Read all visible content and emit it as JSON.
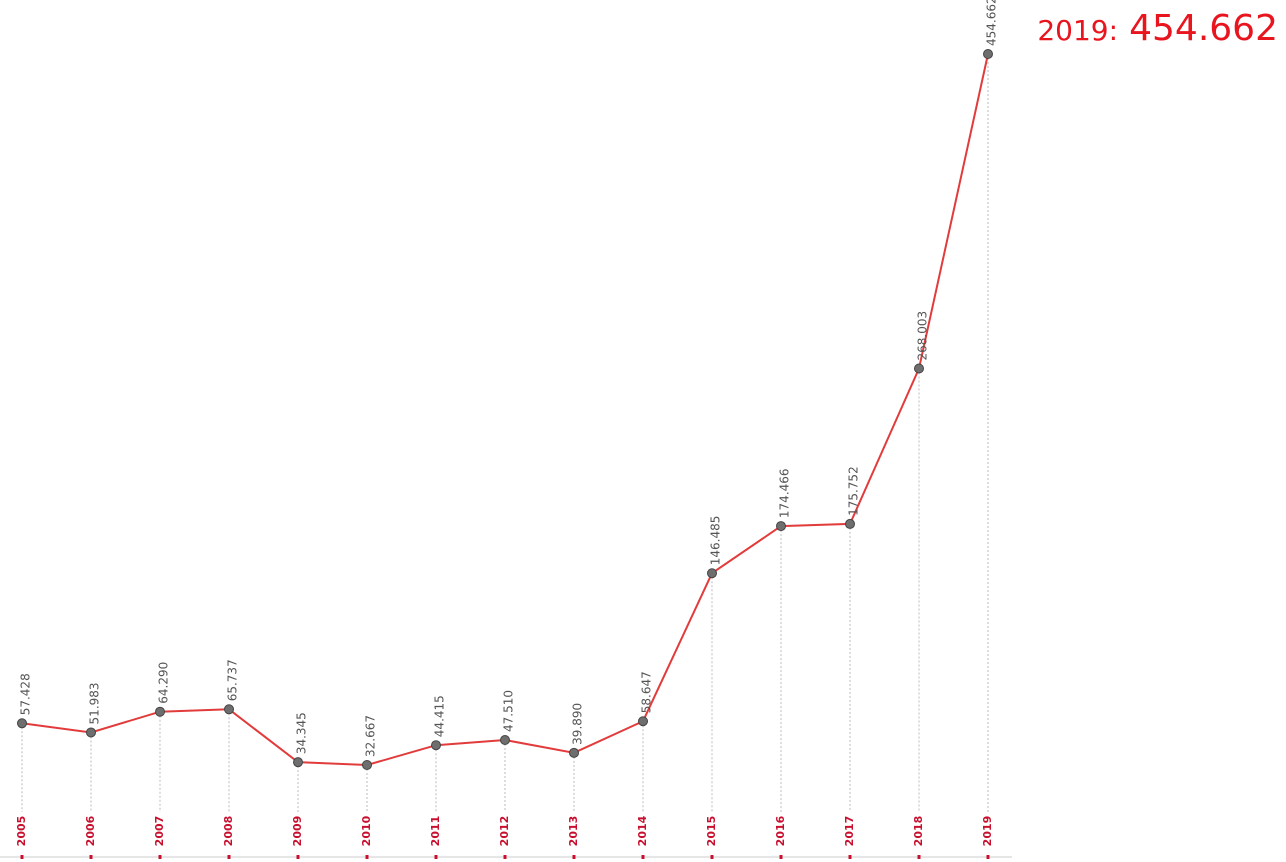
{
  "chart_data": {
    "type": "line",
    "categories": [
      "2005",
      "2006",
      "2007",
      "2008",
      "2009",
      "2010",
      "2011",
      "2012",
      "2013",
      "2014",
      "2015",
      "2016",
      "2017",
      "2018",
      "2019"
    ],
    "values": [
      57.428,
      51.983,
      64.29,
      65.737,
      34.345,
      32.667,
      44.415,
      47.51,
      39.89,
      58.647,
      146.485,
      174.466,
      175.752,
      268.003,
      454.662
    ],
    "value_labels": [
      "57.428",
      "51.983",
      "64.290",
      "65.737",
      "34.345",
      "32.667",
      "44.415",
      "47.510",
      "39.890",
      "58.647",
      "146.485",
      "174.466",
      "175.752",
      "268.003",
      "454.662"
    ],
    "color": "#e23b3b",
    "marker_color": "#6e6e6e",
    "highlight": {
      "label": "2019:",
      "value_label": "454.662"
    }
  }
}
